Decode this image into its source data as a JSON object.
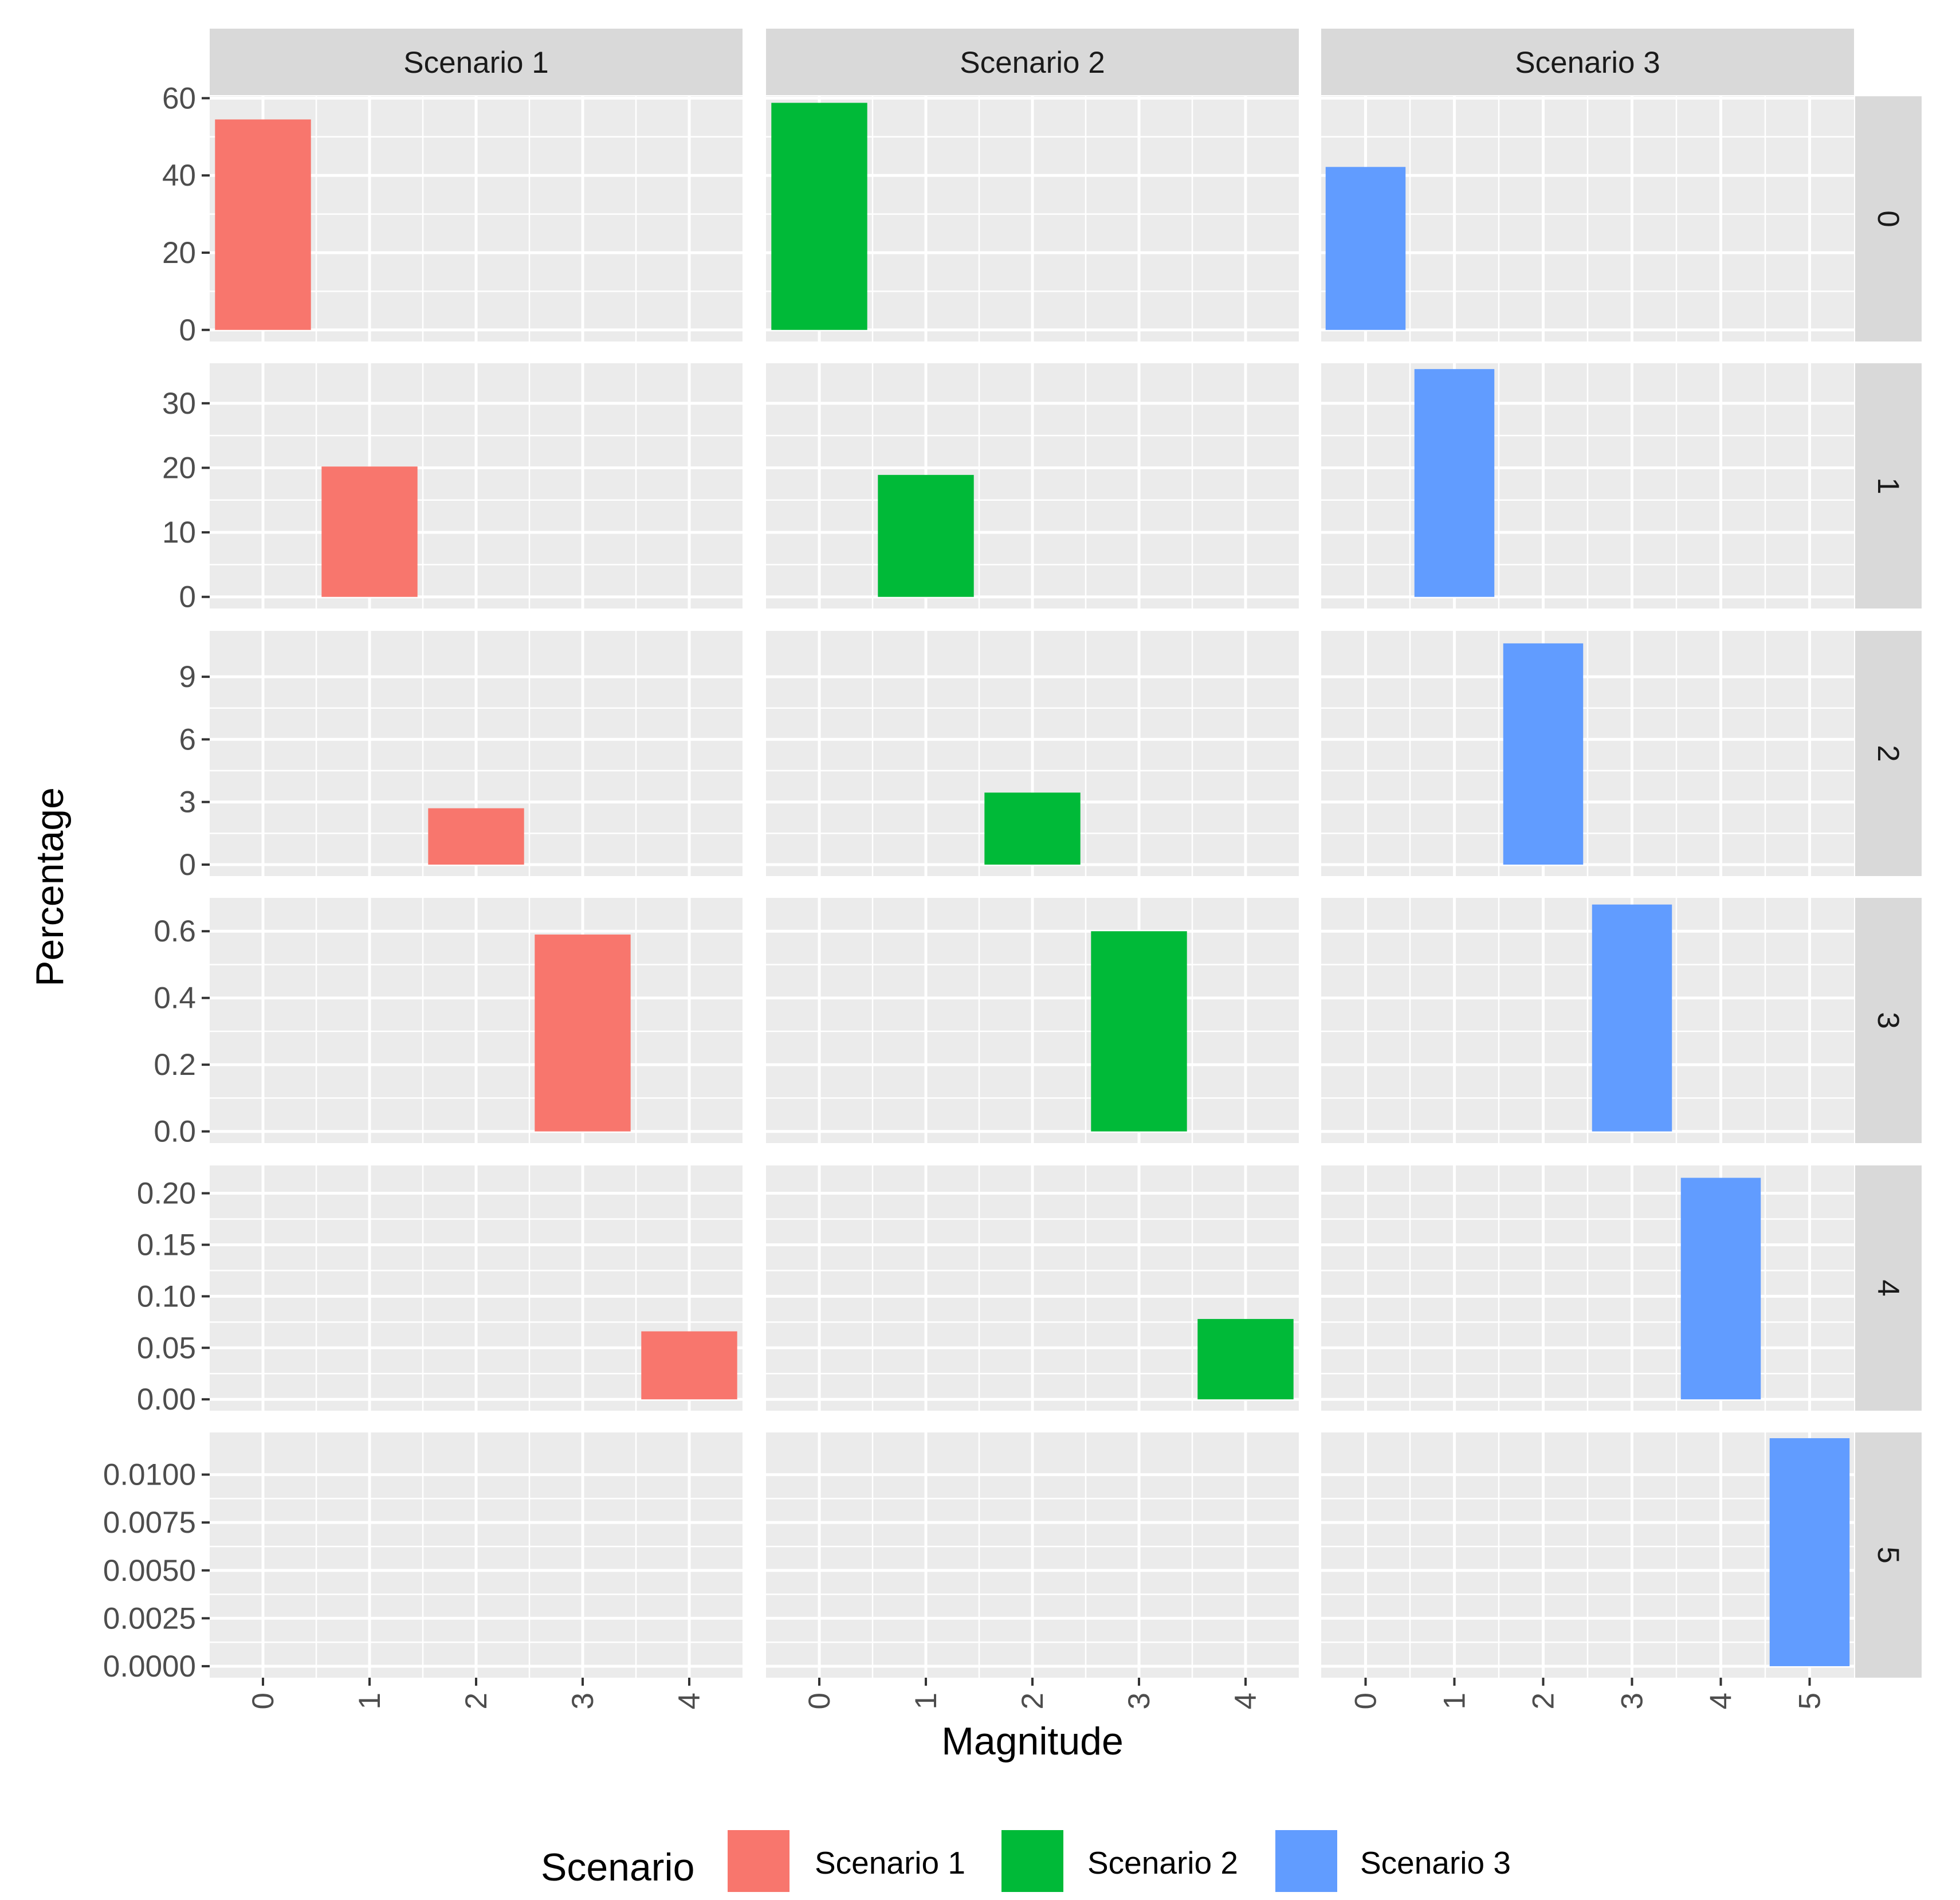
{
  "chart_data": {
    "type": "bar",
    "layout": "facet_grid",
    "xlabel": "Magnitude",
    "ylabel": "Percentage",
    "legend": {
      "title": "Scenario",
      "position": "bottom",
      "entries": [
        {
          "label": "Scenario 1",
          "color": "#F8766D"
        },
        {
          "label": "Scenario 2",
          "color": "#00BA38"
        },
        {
          "label": "Scenario 3",
          "color": "#619CFF"
        }
      ]
    },
    "columns": [
      {
        "label": "Scenario 1",
        "color": "#F8766D",
        "x_range": [
          -0.5,
          4.5
        ],
        "x_ticks": [
          "0",
          "1",
          "2",
          "3",
          "4"
        ]
      },
      {
        "label": "Scenario 2",
        "color": "#00BA38",
        "x_range": [
          -0.5,
          4.5
        ],
        "x_ticks": [
          "0",
          "1",
          "2",
          "3",
          "4"
        ]
      },
      {
        "label": "Scenario 3",
        "color": "#619CFF",
        "x_range": [
          -0.5,
          5.5
        ],
        "x_ticks": [
          "0",
          "1",
          "2",
          "3",
          "4",
          "5"
        ]
      }
    ],
    "rows": [
      {
        "label": "0",
        "ylim": [
          -3,
          60.5
        ],
        "y_ticks": [
          "0",
          "20",
          "40",
          "60"
        ],
        "y_values": [
          0,
          20,
          40,
          60
        ]
      },
      {
        "label": "1",
        "ylim": [
          -1.8,
          36.2
        ],
        "y_ticks": [
          "0",
          "10",
          "20",
          "30"
        ],
        "y_values": [
          0,
          10,
          20,
          30
        ]
      },
      {
        "label": "2",
        "ylim": [
          -0.55,
          11.2
        ],
        "y_ticks": [
          "0",
          "3",
          "6",
          "9"
        ],
        "y_values": [
          0,
          3,
          6,
          9
        ]
      },
      {
        "label": "3",
        "ylim": [
          -0.035,
          0.7
        ],
        "y_ticks": [
          "0.0",
          "0.2",
          "0.4",
          "0.6"
        ],
        "y_values": [
          0,
          0.2,
          0.4,
          0.6
        ]
      },
      {
        "label": "4",
        "ylim": [
          -0.011,
          0.227
        ],
        "y_ticks": [
          "0.00",
          "0.05",
          "0.10",
          "0.15",
          "0.20"
        ],
        "y_values": [
          0,
          0.05,
          0.1,
          0.15,
          0.2
        ]
      },
      {
        "label": "5",
        "ylim": [
          -0.0006,
          0.0122
        ],
        "y_ticks": [
          "0.0000",
          "0.0025",
          "0.0050",
          "0.0075",
          "0.0100"
        ],
        "y_values": [
          0,
          0.0025,
          0.005,
          0.0075,
          0.01
        ]
      }
    ],
    "bars": [
      {
        "scenario": "Scenario 1",
        "magnitude": 0,
        "value": 54.5
      },
      {
        "scenario": "Scenario 1",
        "magnitude": 1,
        "value": 20.2
      },
      {
        "scenario": "Scenario 1",
        "magnitude": 2,
        "value": 2.7
      },
      {
        "scenario": "Scenario 1",
        "magnitude": 3,
        "value": 0.59
      },
      {
        "scenario": "Scenario 1",
        "magnitude": 4,
        "value": 0.066
      },
      {
        "scenario": "Scenario 2",
        "magnitude": 0,
        "value": 58.8
      },
      {
        "scenario": "Scenario 2",
        "magnitude": 1,
        "value": 18.9
      },
      {
        "scenario": "Scenario 2",
        "magnitude": 2,
        "value": 3.45
      },
      {
        "scenario": "Scenario 2",
        "magnitude": 3,
        "value": 0.6
      },
      {
        "scenario": "Scenario 2",
        "magnitude": 4,
        "value": 0.078
      },
      {
        "scenario": "Scenario 3",
        "magnitude": 0,
        "value": 42.2
      },
      {
        "scenario": "Scenario 3",
        "magnitude": 1,
        "value": 35.3
      },
      {
        "scenario": "Scenario 3",
        "magnitude": 2,
        "value": 10.6
      },
      {
        "scenario": "Scenario 3",
        "magnitude": 3,
        "value": 0.68
      },
      {
        "scenario": "Scenario 3",
        "magnitude": 4,
        "value": 0.215
      },
      {
        "scenario": "Scenario 3",
        "magnitude": 5,
        "value": 0.0119
      }
    ]
  }
}
